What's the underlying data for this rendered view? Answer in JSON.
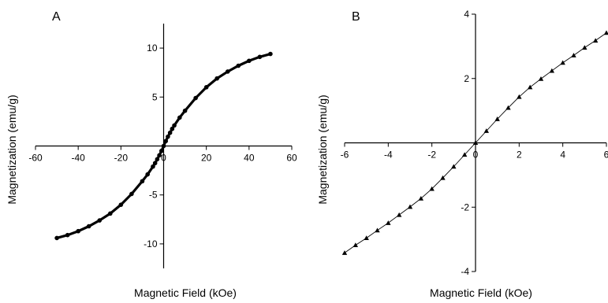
{
  "chart_data": [
    {
      "type": "line",
      "panel_label": "A",
      "xlabel": "Magnetic Field (kOe)",
      "ylabel": "Magnetization (emu/g)",
      "xlim": [
        -60,
        60
      ],
      "ylim": [
        -12.5,
        12.5
      ],
      "xticks": [
        -60,
        -40,
        -20,
        0,
        20,
        40,
        60
      ],
      "yticks": [
        -10,
        -5,
        0,
        5,
        10
      ],
      "grid": false,
      "marker": "filled-circle",
      "series": [
        {
          "x": [
            -50,
            -45,
            -40,
            -35,
            -30,
            -25,
            -20,
            -15,
            -10,
            -7.5,
            -5,
            -4,
            -3,
            -2,
            -1,
            0,
            1,
            2,
            3,
            4,
            5,
            7.5,
            10,
            15,
            20,
            25,
            30,
            35,
            40,
            45,
            50
          ],
          "y": [
            -9.4,
            -9.1,
            -8.7,
            -8.2,
            -7.6,
            -6.9,
            -6.0,
            -4.9,
            -3.6,
            -2.9,
            -2.1,
            -1.75,
            -1.35,
            -0.95,
            -0.5,
            0,
            0.5,
            0.95,
            1.35,
            1.75,
            2.1,
            2.9,
            3.6,
            4.9,
            6.0,
            6.9,
            7.6,
            8.2,
            8.7,
            9.1,
            9.4
          ]
        }
      ]
    },
    {
      "type": "line",
      "panel_label": "B",
      "xlabel": "Magnetic Field (kOe)",
      "ylabel": "Magnetization (emu/g)",
      "xlim": [
        -6,
        6
      ],
      "ylim": [
        -4,
        4
      ],
      "xticks": [
        -6,
        -4,
        -2,
        0,
        2,
        4,
        6
      ],
      "yticks": [
        -4,
        -2,
        0,
        2,
        4
      ],
      "grid": false,
      "marker": "triangle",
      "series": [
        {
          "x": [
            -6,
            -5.5,
            -5,
            -4.5,
            -4,
            -3.5,
            -3,
            -2.5,
            -2,
            -1.5,
            -1,
            -0.5,
            0,
            0.5,
            1,
            1.5,
            2,
            2.5,
            3,
            3.5,
            4,
            4.5,
            5,
            5.5,
            6
          ],
          "y": [
            -3.42,
            -3.18,
            -2.96,
            -2.72,
            -2.49,
            -2.24,
            -1.99,
            -1.73,
            -1.43,
            -1.09,
            -0.74,
            -0.37,
            0,
            0.37,
            0.74,
            1.09,
            1.43,
            1.73,
            1.99,
            2.24,
            2.49,
            2.72,
            2.96,
            3.18,
            3.42
          ]
        }
      ]
    }
  ]
}
